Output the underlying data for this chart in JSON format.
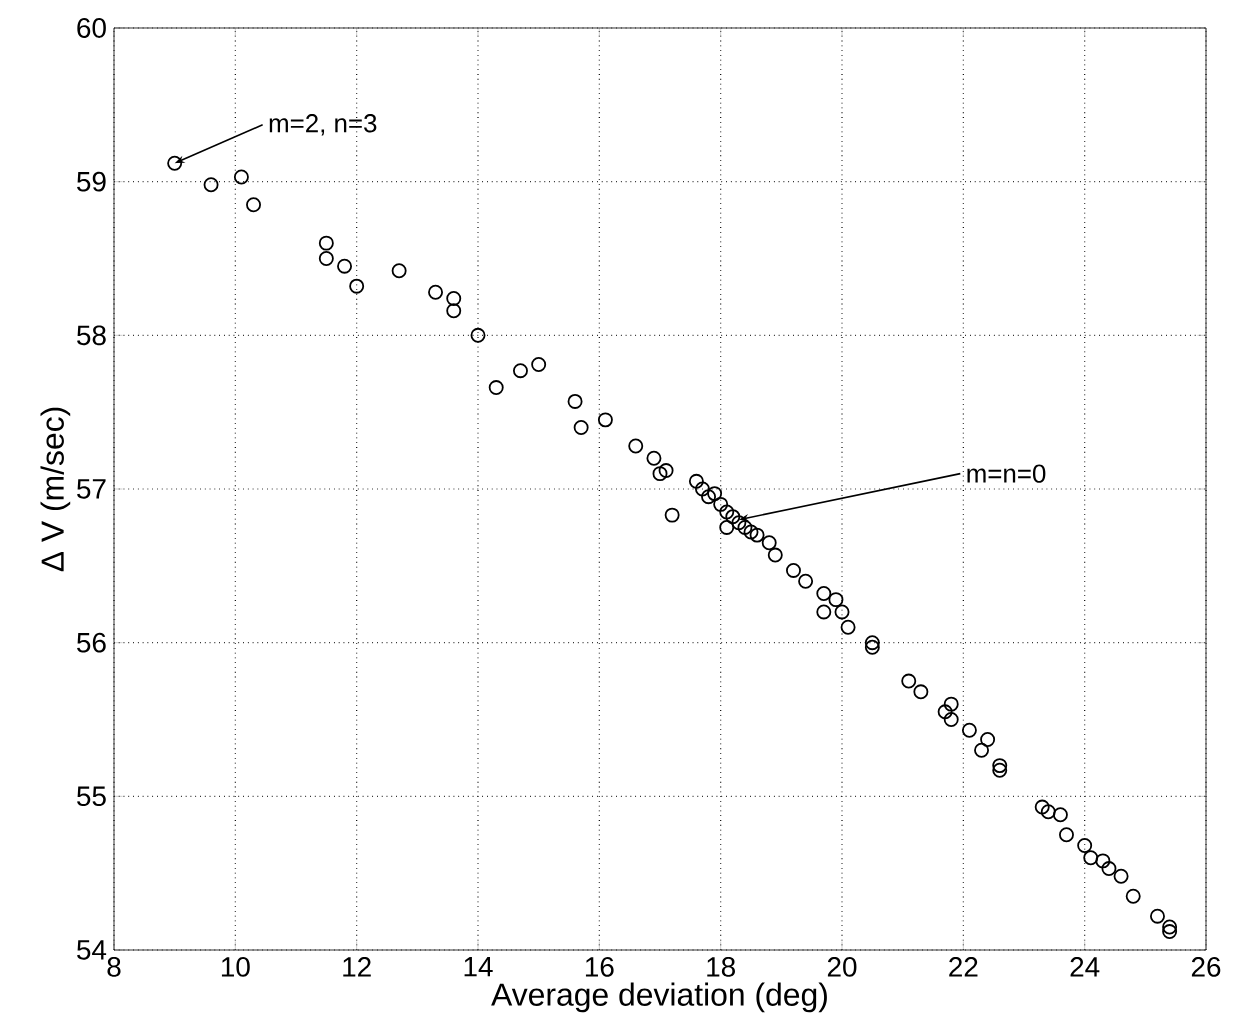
{
  "chart_data": {
    "type": "scatter",
    "xlabel": "Average deviation (deg)",
    "ylabel": "Δ V (m/sec)",
    "xlim": [
      8,
      26
    ],
    "ylim": [
      54,
      60
    ],
    "xticks": [
      8,
      10,
      12,
      14,
      16,
      18,
      20,
      22,
      24,
      26
    ],
    "yticks": [
      54,
      55,
      56,
      57,
      58,
      59,
      60
    ],
    "grid": true,
    "marker": "circle",
    "color": "#000000",
    "x": [
      9.0,
      9.6,
      10.1,
      10.3,
      11.5,
      11.5,
      11.8,
      12.0,
      12.7,
      13.3,
      13.6,
      13.6,
      14.0,
      14.3,
      14.7,
      15.0,
      15.6,
      15.7,
      16.1,
      16.6,
      16.9,
      17.0,
      17.1,
      17.2,
      17.6,
      17.7,
      17.8,
      17.9,
      18.0,
      18.1,
      18.2,
      18.3,
      18.4,
      18.5,
      18.1,
      18.6,
      18.8,
      18.9,
      19.2,
      19.4,
      19.7,
      19.7,
      19.9,
      20.0,
      20.1,
      20.5,
      20.5,
      21.1,
      21.3,
      21.7,
      21.8,
      21.8,
      22.1,
      22.3,
      22.4,
      22.6,
      22.6,
      23.3,
      23.4,
      23.6,
      23.7,
      24.0,
      24.1,
      24.3,
      24.4,
      24.6,
      24.8,
      25.2,
      25.4,
      25.4
    ],
    "values": [
      59.12,
      58.98,
      59.03,
      58.85,
      58.6,
      58.5,
      58.45,
      58.32,
      58.42,
      58.28,
      58.24,
      58.16,
      58.0,
      57.66,
      57.77,
      57.81,
      57.57,
      57.4,
      57.45,
      57.28,
      57.2,
      57.1,
      57.12,
      56.83,
      57.05,
      57.0,
      56.95,
      56.97,
      56.9,
      56.85,
      56.82,
      56.78,
      56.75,
      56.72,
      56.75,
      56.7,
      56.65,
      56.57,
      56.47,
      56.4,
      56.32,
      56.2,
      56.28,
      56.2,
      56.1,
      56.0,
      55.97,
      55.75,
      55.68,
      55.55,
      55.6,
      55.5,
      55.43,
      55.3,
      55.37,
      55.2,
      55.17,
      54.93,
      54.9,
      54.88,
      54.75,
      54.68,
      54.6,
      54.58,
      54.53,
      54.48,
      54.35,
      54.22,
      54.15,
      54.12
    ],
    "annotations": [
      {
        "text": "m=2, n=3",
        "x": 9.0,
        "y": 59.12
      },
      {
        "text": "m=n=0",
        "x": 18.3,
        "y": 56.8
      }
    ]
  }
}
